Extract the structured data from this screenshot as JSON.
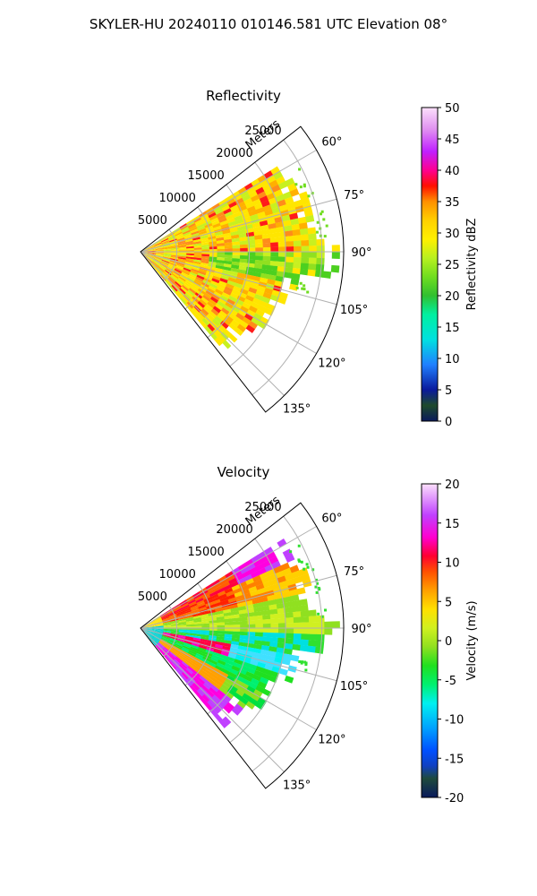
{
  "suptitle": "SKYLER-HU  20240110  010146.581 UTC Elevation 08°",
  "chart_data": [
    {
      "type": "polar-sector",
      "title": "Reflectivity",
      "radial_label": "Meters",
      "radial_ticks": [
        5000,
        10000,
        15000,
        20000,
        25000
      ],
      "radial_tick_labels": [
        "5000",
        "10000",
        "15000",
        "20000",
        "25000"
      ],
      "rmax": 28000,
      "theta_range_deg": [
        52,
        142
      ],
      "theta_ticks_deg": [
        60,
        75,
        90,
        105,
        120,
        135
      ],
      "theta_tick_labels": [
        "60°",
        "75°",
        "90°",
        "105°",
        "120°",
        "135°"
      ],
      "grid": true,
      "colorbar": {
        "label": "Reflectivity dBZ",
        "range": [
          0,
          50
        ],
        "ticks": [
          0,
          5,
          10,
          15,
          20,
          25,
          30,
          35,
          40,
          45,
          50
        ],
        "tick_labels": [
          "0",
          "5",
          "10",
          "15",
          "20",
          "25",
          "30",
          "35",
          "40",
          "45",
          "50"
        ]
      }
    },
    {
      "type": "polar-sector",
      "title": "Velocity",
      "radial_label": "Meters",
      "radial_ticks": [
        5000,
        10000,
        15000,
        20000,
        25000
      ],
      "radial_tick_labels": [
        "5000",
        "10000",
        "15000",
        "20000",
        "25000"
      ],
      "rmax": 28000,
      "theta_range_deg": [
        52,
        142
      ],
      "theta_ticks_deg": [
        60,
        75,
        90,
        105,
        120,
        135
      ],
      "theta_tick_labels": [
        "60°",
        "75°",
        "90°",
        "105°",
        "120°",
        "135°"
      ],
      "grid": true,
      "colorbar": {
        "label": "Velocity (m/s)",
        "range": [
          -20,
          20
        ],
        "ticks": [
          -20,
          -15,
          -10,
          -5,
          0,
          5,
          10,
          15,
          20
        ],
        "tick_labels": [
          "-20",
          "-15",
          "-10",
          "-5",
          "0",
          "5",
          "10",
          "15",
          "20"
        ]
      }
    }
  ]
}
